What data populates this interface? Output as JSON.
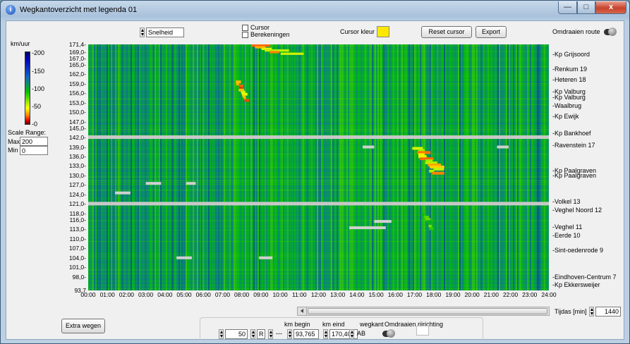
{
  "window": {
    "title": "Wegkantoverzicht met legenda 01",
    "controls": {
      "minimize": "—",
      "maximize": "□",
      "close": "x"
    }
  },
  "toolbar": {
    "measure_field": "Snelheid",
    "cursor_label": "Cursor",
    "calc_label": "Berekeningen",
    "cursor_color_label": "Cursor kleur",
    "cursor_color": "#ffe800",
    "reset_cursor": "Reset cursor",
    "export": "Export",
    "flip_route": "Omdraaien route"
  },
  "legend": {
    "unit": "km/uur",
    "ticks": [
      "-200",
      "-150",
      "-100",
      "-50",
      "-0"
    ],
    "scale_range_label": "Scale Range:",
    "max_label": "Max",
    "max_value": "200",
    "min_label": "Min",
    "min_value": "0"
  },
  "chart_data": {
    "type": "heatmap",
    "x_tick_labels": [
      "00:00",
      "01:00",
      "02:00",
      "03:00",
      "04:00",
      "05:00",
      "06:00",
      "07:00",
      "08:00",
      "09:00",
      "10:00",
      "11:00",
      "12:00",
      "13:00",
      "14:00",
      "15:00",
      "16:00",
      "17:00",
      "18:00",
      "19:00",
      "20:00",
      "21:00",
      "22:00",
      "23:00",
      "24:00"
    ],
    "x_range_hours": [
      0,
      24
    ],
    "y_tick_labels": [
      "171,4",
      "169,0",
      "167,0",
      "165,0",
      "162,0",
      "159,0",
      "156,0",
      "153,0",
      "150,0",
      "147,0",
      "145,0",
      "142,0",
      "139,0",
      "136,0",
      "133,0",
      "130,0",
      "127,0",
      "124,0",
      "121,0",
      "118,0",
      "116,0",
      "113,0",
      "110,0",
      "107,0",
      "104,0",
      "101,0",
      "98,0",
      "93,7"
    ],
    "y_tick_values": [
      171.4,
      169.0,
      167.0,
      165.0,
      162.0,
      159.0,
      156.0,
      153.0,
      150.0,
      147.0,
      145.0,
      142.0,
      139.0,
      136.0,
      133.0,
      130.0,
      127.0,
      124.0,
      121.0,
      118.0,
      116.0,
      113.0,
      110.0,
      107.0,
      104.0,
      101.0,
      98.0,
      93.7
    ],
    "y_range_km": [
      93.7,
      171.4
    ],
    "color_scale": {
      "min": 0,
      "max": 200,
      "unit": "km/uur"
    },
    "background_speed": 100,
    "gaps_km": [
      142.0,
      121.0
    ],
    "congestion_events": [
      {
        "start_hour": 7.9,
        "end_hour": 10.8,
        "km_from": 168.3,
        "km_to": 171.4,
        "speed": 20
      },
      {
        "start_hour": 7.6,
        "end_hour": 8.3,
        "km_from": 153.5,
        "km_to": 160.0,
        "speed": 15
      },
      {
        "start_hour": 16.8,
        "end_hour": 18.5,
        "km_from": 130.5,
        "km_to": 139.0,
        "speed": 20
      },
      {
        "start_hour": 17.3,
        "end_hour": 18.0,
        "km_from": 113.0,
        "km_to": 118.0,
        "speed": 60
      }
    ],
    "missing_data": [
      {
        "start_hour": 14.3,
        "end_hour": 14.9,
        "km": 139.0
      },
      {
        "start_hour": 21.3,
        "end_hour": 21.9,
        "km": 139.0
      },
      {
        "start_hour": 1.4,
        "end_hour": 2.2,
        "km": 124.5
      },
      {
        "start_hour": 3.0,
        "end_hour": 3.8,
        "km": 127.5
      },
      {
        "start_hour": 5.1,
        "end_hour": 5.6,
        "km": 127.5
      },
      {
        "start_hour": 13.6,
        "end_hour": 15.5,
        "km": 113.5
      },
      {
        "start_hour": 14.9,
        "end_hour": 15.8,
        "km": 115.5
      },
      {
        "start_hour": 4.6,
        "end_hour": 5.4,
        "km": 104.0
      },
      {
        "start_hour": 8.9,
        "end_hour": 9.6,
        "km": 104.0
      }
    ]
  },
  "locations": [
    {
      "label": "-Kp Grijsoord",
      "km": 168.3
    },
    {
      "label": "-Renkum 19",
      "km": 163.6
    },
    {
      "label": "-Heteren 18",
      "km": 160.2
    },
    {
      "label": "-Kp Valburg",
      "km": 156.4
    },
    {
      "label": "-Kp Valburg",
      "km": 154.6
    },
    {
      "label": "-Waalbrug",
      "km": 152.0
    },
    {
      "label": "-Kp Ewijk",
      "km": 148.7
    },
    {
      "label": "-Kp Bankhoef",
      "km": 143.3
    },
    {
      "label": "-Ravenstein 17",
      "km": 139.5
    },
    {
      "label": "-Kp Paalgraven",
      "km": 131.6
    },
    {
      "label": "-Kp Paalgraven",
      "km": 129.9
    },
    {
      "label": "-Volkel 13",
      "km": 121.7
    },
    {
      "label": "-Veghel Noord 12",
      "km": 119.1
    },
    {
      "label": "-Veghel 11",
      "km": 113.8
    },
    {
      "label": "-Eerde 10",
      "km": 111.1
    },
    {
      "label": "-Sint-oedenrode 9",
      "km": 106.4
    },
    {
      "label": "-Eindhoven-Centrum 7",
      "km": 97.9
    },
    {
      "label": "-Kp Ekkersweijer",
      "km": 95.4
    }
  ],
  "time_control": {
    "label": "Tijdas [min]",
    "value": "1440"
  },
  "extra_roads": "Extra wegen",
  "bottom": {
    "count_value": "50",
    "lane_value": "R",
    "dash_value": "---",
    "km_begin_label": "km begin",
    "km_begin_value": "93,765",
    "km_end_label": "km eind",
    "km_end_value": "170,400",
    "side_label": "wegkant",
    "side_value": "AB",
    "flip_direction_label": "Omdraaien rijrichting"
  }
}
